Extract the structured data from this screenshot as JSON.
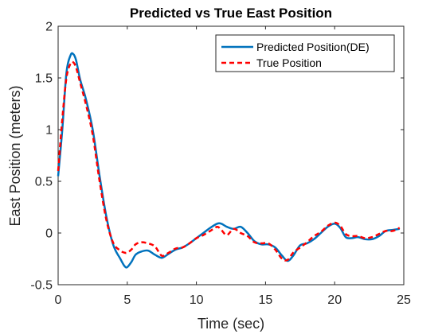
{
  "chart_data": {
    "type": "line",
    "title": "Predicted vs True East Position",
    "xlabel": "Time (sec)",
    "ylabel": "East Position (meters)",
    "xlim": [
      0,
      25
    ],
    "ylim": [
      -0.5,
      2
    ],
    "xticks": [
      0,
      5,
      10,
      15,
      20,
      25
    ],
    "yticks": [
      -0.5,
      0,
      0.5,
      1,
      1.5,
      2
    ],
    "xtick_labels": [
      "0",
      "5",
      "10",
      "15",
      "20",
      "25"
    ],
    "ytick_labels": [
      "-0.5",
      "0",
      "0.5",
      "1",
      "1.5",
      "2"
    ],
    "grid": false,
    "legend_position": "top-right",
    "series": [
      {
        "name": "Predicted Position(DE)",
        "color": "#0072BD",
        "style": "solid",
        "x": [
          0,
          0.3,
          0.6,
          0.9,
          1.1,
          1.3,
          1.6,
          2.0,
          2.5,
          3.0,
          3.5,
          4.0,
          4.5,
          4.8,
          5.0,
          5.3,
          5.6,
          6.0,
          6.5,
          7.0,
          7.5,
          8.0,
          8.5,
          9.0,
          9.5,
          10.0,
          10.5,
          11.0,
          11.5,
          11.8,
          12.2,
          12.7,
          13.2,
          13.7,
          14.2,
          14.7,
          15.2,
          15.7,
          16.2,
          16.6,
          17.0,
          17.5,
          18.0,
          18.5,
          19.0,
          19.5,
          20.0,
          20.4,
          20.8,
          21.2,
          21.7,
          22.2,
          22.7,
          23.2,
          23.7,
          24.2,
          24.7
        ],
        "y": [
          0.55,
          1.0,
          1.55,
          1.72,
          1.73,
          1.67,
          1.48,
          1.3,
          1.0,
          0.55,
          0.15,
          -0.12,
          -0.25,
          -0.32,
          -0.33,
          -0.28,
          -0.21,
          -0.18,
          -0.17,
          -0.21,
          -0.24,
          -0.2,
          -0.16,
          -0.14,
          -0.1,
          -0.05,
          0.0,
          0.05,
          0.09,
          0.09,
          0.06,
          0.04,
          0.06,
          0.0,
          -0.08,
          -0.11,
          -0.11,
          -0.14,
          -0.22,
          -0.27,
          -0.22,
          -0.12,
          -0.1,
          -0.06,
          0.0,
          0.06,
          0.09,
          0.05,
          -0.04,
          -0.05,
          -0.04,
          -0.06,
          -0.06,
          -0.03,
          0.02,
          0.03,
          0.04
        ]
      },
      {
        "name": "True Position",
        "color": "#FF0000",
        "style": "dashed",
        "x": [
          0,
          0.3,
          0.6,
          0.9,
          1.1,
          1.3,
          1.6,
          2.0,
          2.5,
          3.0,
          3.5,
          4.0,
          4.5,
          4.8,
          5.0,
          5.3,
          5.6,
          6.0,
          6.5,
          7.0,
          7.5,
          8.0,
          8.5,
          9.0,
          9.5,
          10.0,
          10.5,
          11.0,
          11.5,
          11.8,
          12.2,
          12.7,
          13.2,
          13.7,
          14.2,
          14.7,
          15.2,
          15.7,
          16.2,
          16.6,
          17.0,
          17.5,
          18.0,
          18.5,
          19.0,
          19.5,
          20.0,
          20.4,
          20.8,
          21.2,
          21.7,
          22.2,
          22.7,
          23.2,
          23.7,
          24.2,
          24.7
        ],
        "y": [
          0.6,
          1.1,
          1.5,
          1.64,
          1.65,
          1.6,
          1.45,
          1.25,
          0.95,
          0.5,
          0.12,
          -0.1,
          -0.17,
          -0.19,
          -0.19,
          -0.16,
          -0.11,
          -0.09,
          -0.1,
          -0.13,
          -0.22,
          -0.19,
          -0.15,
          -0.14,
          -0.1,
          -0.05,
          -0.02,
          0.02,
          0.06,
          0.03,
          -0.02,
          0.04,
          0.0,
          -0.03,
          -0.09,
          -0.1,
          -0.1,
          -0.16,
          -0.25,
          -0.26,
          -0.19,
          -0.14,
          -0.09,
          -0.03,
          0.01,
          0.07,
          0.1,
          0.07,
          -0.01,
          -0.03,
          -0.03,
          -0.05,
          -0.04,
          -0.01,
          0.02,
          0.02,
          0.05
        ]
      }
    ]
  }
}
